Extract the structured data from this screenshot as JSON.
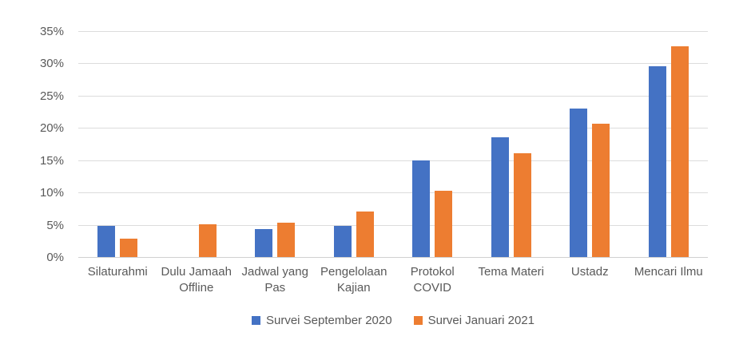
{
  "chart_data": {
    "type": "bar",
    "title": "",
    "xlabel": "",
    "ylabel": "",
    "categories": [
      "Silaturahmi",
      "Dulu Jamaah Offline",
      "Jadwal yang Pas",
      "Pengelolaan Kajian",
      "Protokol COVID",
      "Tema Materi",
      "Ustadz",
      "Mencari Ilmu"
    ],
    "series": [
      {
        "name": "Survei September 2020",
        "color": "#4472C4",
        "values": [
          4.8,
          0,
          4.3,
          4.8,
          15.0,
          18.6,
          23.0,
          29.5
        ]
      },
      {
        "name": "Survei Januari 2021",
        "color": "#ED7D31",
        "values": [
          2.8,
          5.1,
          5.3,
          7.1,
          10.3,
          16.1,
          20.6,
          32.7
        ]
      }
    ],
    "ylim": [
      0,
      35
    ],
    "ytick_step": 5,
    "yticks": [
      "0%",
      "5%",
      "10%",
      "15%",
      "20%",
      "25%",
      "30%",
      "35%"
    ],
    "grid": true,
    "legend_position": "bottom",
    "colors": {
      "gridline": "#dcdcdc",
      "axis_text": "#595959",
      "background": "#ffffff"
    }
  }
}
